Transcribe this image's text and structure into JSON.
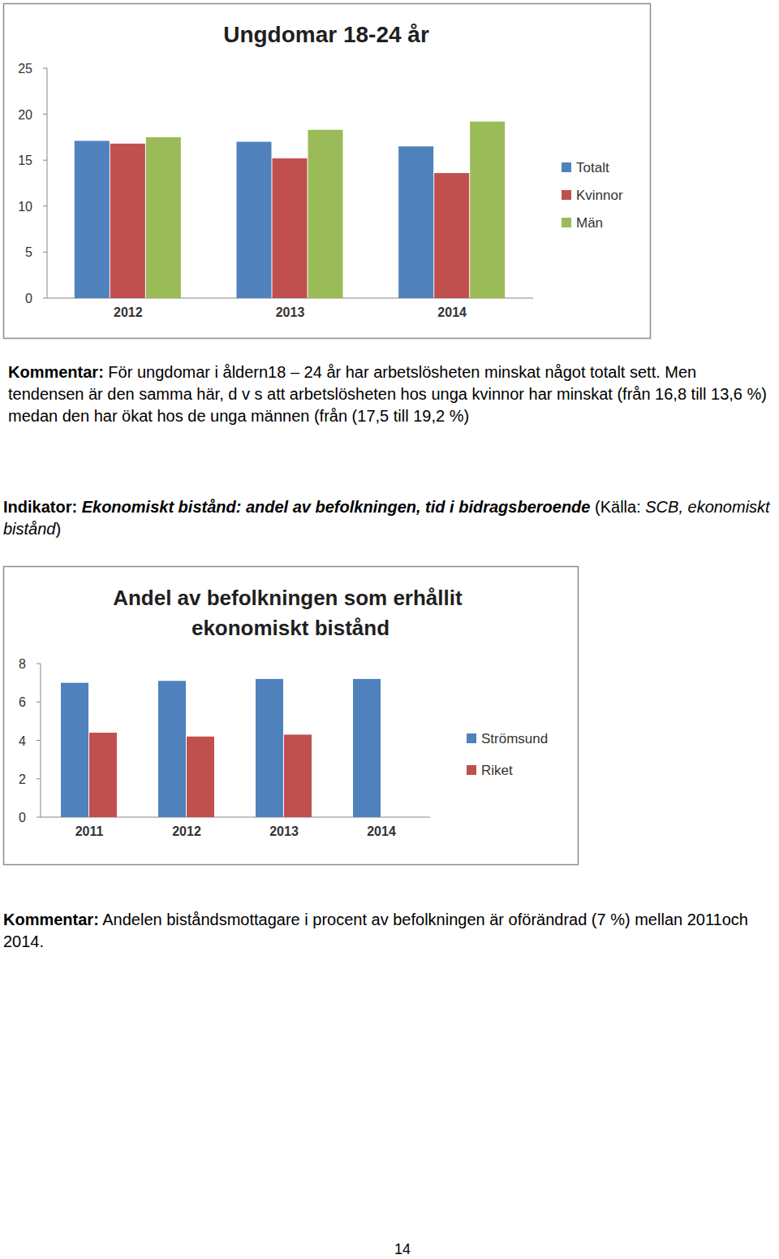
{
  "chart_data": [
    {
      "type": "bar",
      "title": "Ungdomar 18-24 år",
      "categories": [
        "2012",
        "2013",
        "2014"
      ],
      "series": [
        {
          "name": "Totalt",
          "color": "#4f81bd",
          "values": [
            17.1,
            17.0,
            16.5
          ]
        },
        {
          "name": "Kvinnor",
          "color": "#c0504d",
          "values": [
            16.8,
            15.2,
            13.6
          ]
        },
        {
          "name": "Män",
          "color": "#9bbb59",
          "values": [
            17.5,
            18.3,
            19.2
          ]
        }
      ],
      "ylim": [
        0,
        25
      ],
      "yticks": [
        0,
        5,
        10,
        15,
        20,
        25
      ],
      "grid": false,
      "legend": "right"
    },
    {
      "type": "bar",
      "title": "Andel av befolkningen som erhållit ekonomiskt bistånd",
      "categories": [
        "2011",
        "2012",
        "2013",
        "2014"
      ],
      "series": [
        {
          "name": "Strömsund",
          "color": "#4f81bd",
          "values": [
            7.0,
            7.1,
            7.2,
            7.2
          ]
        },
        {
          "name": "Riket",
          "color": "#c0504d",
          "values": [
            4.4,
            4.2,
            4.3,
            null
          ]
        }
      ],
      "ylim": [
        0,
        8
      ],
      "yticks": [
        0,
        2,
        4,
        6,
        8
      ],
      "grid": false,
      "legend": "right"
    }
  ],
  "document": {
    "paragraphs": [
      {
        "runs": [
          {
            "text": "Kommentar:",
            "style": "bold"
          },
          {
            "text": " För ungdomar i åldern18 – 24 år har arbetslösheten minskat något totalt sett. Men tendensen är den samma här, d v s att arbetslösheten hos unga kvinnor har minskat (från 16,8 till 13,6 %) medan den har ökat hos de unga männen (från (17,5 till 19,2 %)",
            "style": "normal"
          }
        ]
      },
      {
        "runs": [
          {
            "text": "Indikator:",
            "style": "bold"
          },
          {
            "text": " ",
            "style": "normal"
          },
          {
            "text": "Ekonomiskt bistånd: andel av befolkningen, tid i bidragsberoende",
            "style": "bold-italic"
          },
          {
            "text": " (Källa: ",
            "style": "normal"
          },
          {
            "text": "SCB, ekonomiskt bistånd",
            "style": "italic"
          },
          {
            "text": ")",
            "style": "normal"
          }
        ]
      },
      {
        "runs": [
          {
            "text": "Kommentar:",
            "style": "bold"
          },
          {
            "text": " Andelen biståndsmottagare i procent av befolkningen är oförändrad (7 %) mellan 2011och 2014.",
            "style": "normal"
          }
        ]
      }
    ],
    "page_number": "14"
  }
}
